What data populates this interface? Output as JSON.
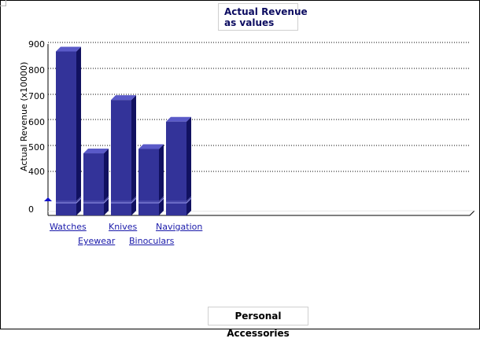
{
  "chart_data": {
    "type": "bar",
    "title_lines": [
      "Actual Revenue",
      "as values"
    ],
    "ylabel": "Actual Revenue (x10000)",
    "footer": "Personal Accessories",
    "categories": [
      "Watches",
      "Eyewear",
      "Knives",
      "Binoculars",
      "Navigation"
    ],
    "values": [
      865,
      470,
      677,
      487,
      593
    ],
    "yticks": [
      "900",
      "800",
      "700",
      "600",
      "500",
      "400",
      "0"
    ],
    "grid": true,
    "axis_break": true,
    "colors": {
      "bar_front": "#333399",
      "bar_side": "#111160",
      "bar_top": "#5a5ac8",
      "break_line": "#8c8ce0"
    }
  }
}
